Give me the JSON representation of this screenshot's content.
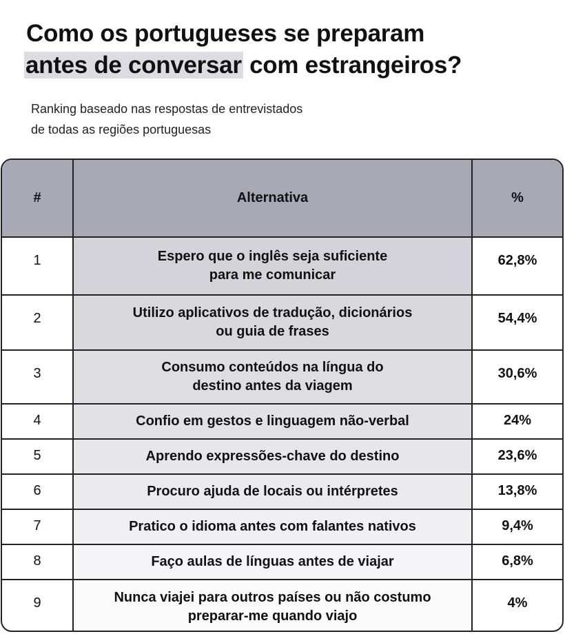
{
  "title": {
    "line1": "Como os portugueses se preparam",
    "highlight": "antes de conversar",
    "line2_rest": " com estrangeiros?"
  },
  "subtitle": {
    "line1": "Ranking baseado nas respostas de entrevistados",
    "line2": "de todas as regiões portuguesas"
  },
  "colors": {
    "header": "#a9a8b5",
    "highlight": "#dcdce2",
    "gradient_top": "#d3d3d9",
    "gradient_bottom": "#ffffff"
  },
  "chart_data": {
    "type": "table",
    "columns": [
      "#",
      "Alternativa",
      "%"
    ],
    "rows": [
      {
        "rank": "1",
        "alt1": "Espero que o inglês seja suficiente",
        "alt2": "para me comunicar",
        "pct": "62,8%",
        "value": 62.8
      },
      {
        "rank": "2",
        "alt1": "Utilizo aplicativos de tradução, dicionários",
        "alt2": "ou guia de frases",
        "pct": "54,4%",
        "value": 54.4
      },
      {
        "rank": "3",
        "alt1": "Consumo conteúdos na língua do",
        "alt2": "destino antes da viagem",
        "pct": "30,6%",
        "value": 30.6
      },
      {
        "rank": "4",
        "alt1": "Confio em gestos e linguagem não-verbal",
        "alt2": "",
        "pct": "24%",
        "value": 24
      },
      {
        "rank": "5",
        "alt1": "Aprendo expressões-chave do destino",
        "alt2": "",
        "pct": "23,6%",
        "value": 23.6
      },
      {
        "rank": "6",
        "alt1": "Procuro ajuda de locais ou intérpretes",
        "alt2": "",
        "pct": "13,8%",
        "value": 13.8
      },
      {
        "rank": "7",
        "alt1": "Pratico o idioma antes com falantes nativos",
        "alt2": "",
        "pct": "9,4%",
        "value": 9.4
      },
      {
        "rank": "8",
        "alt1": "Faço aulas de línguas antes de viajar",
        "alt2": "",
        "pct": "6,8%",
        "value": 6.8
      },
      {
        "rank": "9",
        "alt1": "Nunca viajei para outros países ou não costumo",
        "alt2": "preparar-me quando viajo",
        "pct": "4%",
        "value": 4
      }
    ]
  }
}
